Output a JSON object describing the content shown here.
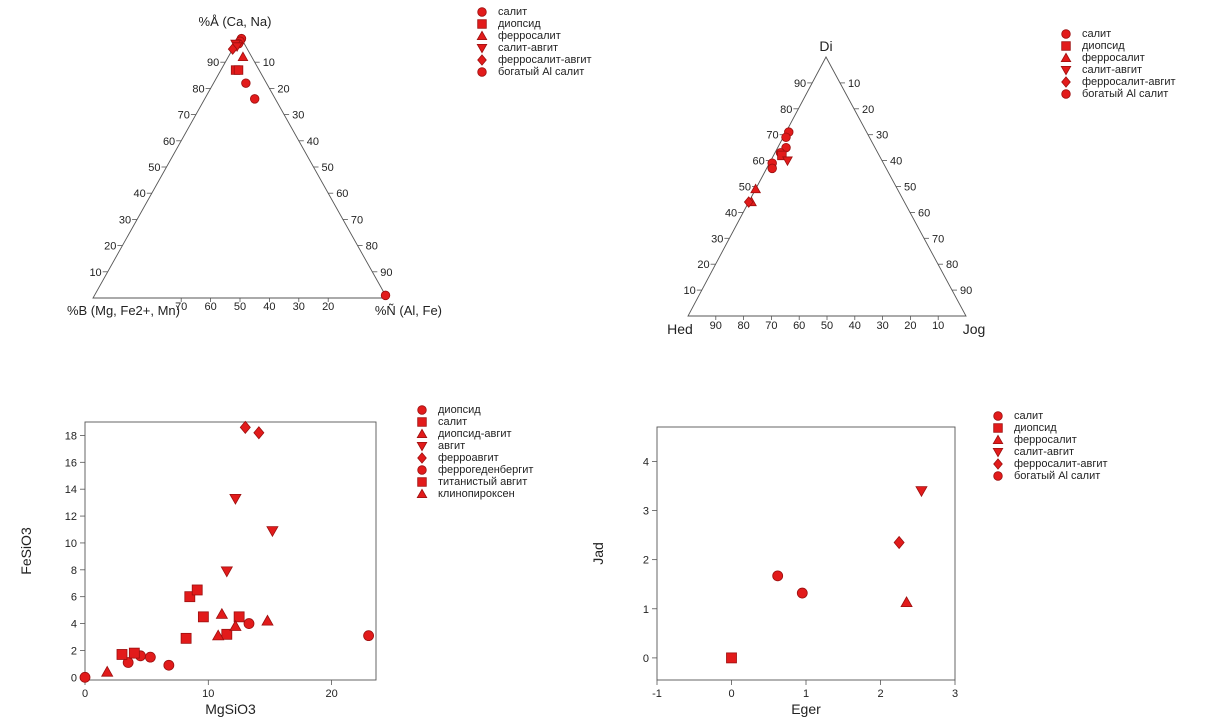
{
  "colors": {
    "marker": "#e21b1b",
    "marker_stroke": "#9c0f0f",
    "axis": "#555555"
  },
  "chart_data": [
    {
      "type": "ternary",
      "vertex_top": "%Å (Ca, Na)",
      "vertex_left": "%B (Mg, Fe2+, Mn)",
      "vertex_right": "%Ñ (Al, Fe)",
      "left_edge_ticks": [
        "10",
        "20",
        "30",
        "40",
        "50",
        "60",
        "70",
        "80",
        "90"
      ],
      "right_edge_ticks": [
        "10",
        "20",
        "30",
        "40",
        "50",
        "60",
        "70",
        "80",
        "90"
      ],
      "bottom_edge_ticks": [
        "70",
        "60",
        "50",
        "40",
        "30",
        "20"
      ],
      "legend": [
        {
          "label": "салит",
          "marker": "circle"
        },
        {
          "label": "диопсид",
          "marker": "square"
        },
        {
          "label": "ферросалит",
          "marker": "triangle-up"
        },
        {
          "label": "салит-авгит",
          "marker": "triangle-down"
        },
        {
          "label": "ферросалит-авгит",
          "marker": "diamond"
        },
        {
          "label": "богатый Al салит",
          "marker": "circle"
        }
      ],
      "points": [
        {
          "top": 99,
          "right": 1,
          "marker": "circle"
        },
        {
          "top": 98,
          "right": 1,
          "marker": "circle"
        },
        {
          "top": 97,
          "right": 1,
          "marker": "circle"
        },
        {
          "top": 97,
          "right": 0,
          "marker": "triangle-down"
        },
        {
          "top": 96,
          "right": 1,
          "marker": "triangle-down"
        },
        {
          "top": 95,
          "right": 0,
          "marker": "diamond"
        },
        {
          "top": 92,
          "right": 5,
          "marker": "triangle-up"
        },
        {
          "top": 87,
          "right": 5,
          "marker": "square"
        },
        {
          "top": 87,
          "right": 6,
          "marker": "square"
        },
        {
          "top": 82,
          "right": 11,
          "marker": "circle"
        },
        {
          "top": 76,
          "right": 17,
          "marker": "circle"
        },
        {
          "top": 1,
          "right": 99,
          "marker": "circle"
        }
      ]
    },
    {
      "type": "ternary",
      "vertex_top": "Di",
      "vertex_left": "Hed",
      "vertex_right": "Jog",
      "left_edge_ticks": [
        "10",
        "20",
        "30",
        "40",
        "50",
        "60",
        "70",
        "80",
        "90"
      ],
      "right_edge_ticks": [
        "10",
        "20",
        "30",
        "40",
        "50",
        "60",
        "70",
        "80",
        "90"
      ],
      "bottom_edge_ticks": [
        "90",
        "80",
        "70",
        "60",
        "50",
        "40",
        "30",
        "20",
        "10"
      ],
      "legend": [
        {
          "label": "салит",
          "marker": "circle"
        },
        {
          "label": "диопсид",
          "marker": "square"
        },
        {
          "label": "ферросалит",
          "marker": "triangle-up"
        },
        {
          "label": "салит-авгит",
          "marker": "triangle-down"
        },
        {
          "label": "ферросалит-авгит",
          "marker": "diamond"
        },
        {
          "label": "богатый Al салит",
          "marker": "circle"
        }
      ],
      "points": [
        {
          "top": 71,
          "right": 1,
          "marker": "circle"
        },
        {
          "top": 69,
          "right": 1,
          "marker": "circle"
        },
        {
          "top": 65,
          "right": 3,
          "marker": "circle"
        },
        {
          "top": 63,
          "right": 2,
          "marker": "circle"
        },
        {
          "top": 62,
          "right": 3,
          "marker": "square"
        },
        {
          "top": 60,
          "right": 6,
          "marker": "triangle-down"
        },
        {
          "top": 59,
          "right": 1,
          "marker": "circle"
        },
        {
          "top": 57,
          "right": 2,
          "marker": "circle"
        },
        {
          "top": 49,
          "right": 0,
          "marker": "triangle-up"
        },
        {
          "top": 44,
          "right": 1,
          "marker": "triangle-up"
        },
        {
          "top": 44,
          "right": 0,
          "marker": "diamond"
        }
      ]
    },
    {
      "type": "scatter",
      "xlabel": "MgSiO3",
      "ylabel": "FeSiO3",
      "xlim": [
        0,
        23.6
      ],
      "ylim": [
        -0.2,
        19
      ],
      "xticks": [
        0,
        10,
        20
      ],
      "yticks": [
        0,
        2,
        4,
        6,
        8,
        10,
        12,
        14,
        16,
        18
      ],
      "legend": [
        {
          "label": "диопсид",
          "marker": "circle"
        },
        {
          "label": "салит",
          "marker": "square"
        },
        {
          "label": "диопсид-авгит",
          "marker": "triangle-up"
        },
        {
          "label": "авгит",
          "marker": "triangle-down"
        },
        {
          "label": "ферроавгит",
          "marker": "diamond"
        },
        {
          "label": "феррогеденбергит",
          "marker": "circle"
        },
        {
          "label": "титанистый авгит",
          "marker": "square"
        },
        {
          "label": "клинопироксен",
          "marker": "triangle-up"
        }
      ],
      "series": [
        {
          "marker": "circle",
          "x": [
            0,
            3.5,
            4.5,
            5.3,
            6.8,
            13.3,
            23
          ],
          "y": [
            0,
            1.1,
            1.6,
            1.5,
            0.9,
            4.0,
            3.1
          ]
        },
        {
          "marker": "square",
          "x": [
            3,
            4,
            8.2,
            8.5,
            9.1,
            9.6,
            11.5,
            12.5
          ],
          "y": [
            1.7,
            1.8,
            2.9,
            6.0,
            6.5,
            4.5,
            3.2,
            4.5
          ]
        },
        {
          "marker": "triangle-up",
          "x": [
            1.8,
            10.8,
            11.1,
            12.2,
            14.8
          ],
          "y": [
            0.4,
            3.1,
            4.7,
            3.8,
            4.2
          ]
        },
        {
          "marker": "triangle-down",
          "x": [
            11.5,
            12.2,
            15.2
          ],
          "y": [
            7.9,
            13.3,
            10.9
          ]
        },
        {
          "marker": "diamond",
          "x": [
            13,
            14.1
          ],
          "y": [
            18.6,
            18.2
          ]
        }
      ]
    },
    {
      "type": "scatter",
      "xlabel": "Eger",
      "ylabel": "Jad",
      "xlim": [
        -1,
        3
      ],
      "ylim": [
        -0.45,
        4.7
      ],
      "xticks": [
        -1,
        0,
        1,
        2,
        3
      ],
      "yticks": [
        0,
        1,
        2,
        3,
        4
      ],
      "legend": [
        {
          "label": "салит",
          "marker": "circle"
        },
        {
          "label": "диопсид",
          "marker": "square"
        },
        {
          "label": "ферросалит",
          "marker": "triangle-up"
        },
        {
          "label": "салит-авгит",
          "marker": "triangle-down"
        },
        {
          "label": "ферросалит-авгит",
          "marker": "diamond"
        },
        {
          "label": "богатый Al салит",
          "marker": "circle"
        }
      ],
      "series": [
        {
          "marker": "circle",
          "x": [
            0.62,
            0.95
          ],
          "y": [
            1.67,
            1.32
          ]
        },
        {
          "marker": "square",
          "x": [
            0
          ],
          "y": [
            0
          ]
        },
        {
          "marker": "triangle-up",
          "x": [
            2.35
          ],
          "y": [
            1.13
          ]
        },
        {
          "marker": "triangle-down",
          "x": [
            2.55
          ],
          "y": [
            3.4
          ]
        },
        {
          "marker": "diamond",
          "x": [
            2.25
          ],
          "y": [
            2.35
          ]
        }
      ]
    }
  ]
}
